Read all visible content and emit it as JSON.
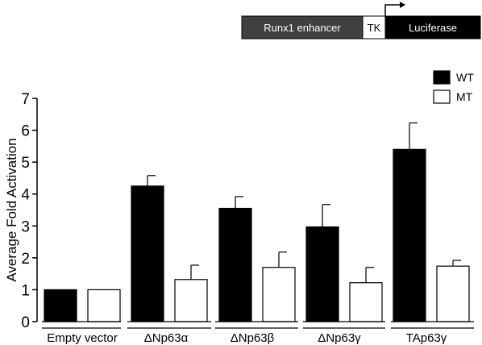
{
  "construct": {
    "segments": [
      {
        "label": "Runx1 enhancer",
        "fill": "#404040",
        "text_color": "#ffffff"
      },
      {
        "label": "TK",
        "fill": "#ffffff",
        "text_color": "#000000"
      },
      {
        "label": "Luciferase",
        "fill": "#000000",
        "text_color": "#ffffff"
      }
    ]
  },
  "chart_data": {
    "type": "bar",
    "title": "",
    "xlabel": "",
    "ylabel": "Average Fold Activation",
    "ylim": [
      0,
      7
    ],
    "yticks": [
      "0",
      "1",
      "2",
      "3",
      "4",
      "5",
      "6",
      "7"
    ],
    "categories": [
      "Empty vector",
      "ΔNp63α",
      "ΔNp63β",
      "ΔNp63γ",
      "TAp63γ"
    ],
    "series": [
      {
        "name": "WT",
        "color": "#000000",
        "values": [
          1.0,
          4.25,
          3.55,
          2.97,
          5.4
        ],
        "errors": [
          0,
          0.33,
          0.37,
          0.7,
          0.83
        ]
      },
      {
        "name": "MT",
        "color": "#ffffff",
        "values": [
          1.0,
          1.32,
          1.7,
          1.22,
          1.74
        ],
        "errors": [
          0,
          0.45,
          0.48,
          0.48,
          0.18
        ]
      }
    ],
    "legend_position": "top-right",
    "grid": false
  }
}
